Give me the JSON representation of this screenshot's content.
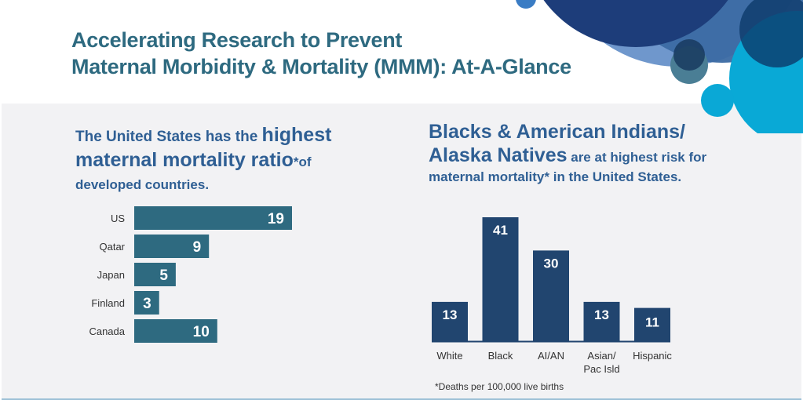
{
  "header": {
    "title_line1": "Accelerating Research to Prevent",
    "title_line2": "Maternal Morbidity & Mortality (MMM): At-A-Glance"
  },
  "colors": {
    "title": "#2e6a80",
    "heading": "#2f5f94",
    "bar_left": "#2e6a80",
    "bar_right": "#21456f",
    "panel_bg": "#f2f2f4",
    "bubble_navy": "#1a3c78",
    "bubble_blue": "#3e6aa8",
    "bubble_cyan": "#0aa8d6"
  },
  "left_section": {
    "heading_part1": "The United States has the ",
    "heading_part2": "highest",
    "heading_part3": "maternal mortality ratio",
    "heading_part4": "*of",
    "heading_part5": "developed countries."
  },
  "right_section": {
    "heading_part1": "Blacks & American Indians/",
    "heading_part2": "Alaska Natives",
    "heading_part3": " are at highest risk for",
    "heading_part4": "maternal mortality* in the United States.",
    "footnote": "*Deaths per 100,000 live births"
  },
  "chart_data": [
    {
      "type": "bar",
      "orientation": "horizontal",
      "title": "Maternal mortality ratio of developed countries",
      "categories": [
        "US",
        "Qatar",
        "Japan",
        "Finland",
        "Canada"
      ],
      "values": [
        19,
        9,
        5,
        3,
        10
      ],
      "xlabel": "",
      "ylabel": "",
      "xlim": [
        0,
        20
      ],
      "grid": false,
      "data_labels": true
    },
    {
      "type": "bar",
      "orientation": "vertical",
      "title": "Maternal mortality by race/ethnicity in the United States",
      "categories": [
        "White",
        "Black",
        "AI/AN",
        "Asian/\nPac Isld",
        "Hispanic"
      ],
      "category_lines": [
        [
          "White"
        ],
        [
          "Black"
        ],
        [
          "AI/AN"
        ],
        [
          "Asian/",
          "Pac Isld"
        ],
        [
          "Hispanic"
        ]
      ],
      "values": [
        13,
        41,
        30,
        13,
        11
      ],
      "xlabel": "",
      "ylabel": "",
      "ylim": [
        0,
        45
      ],
      "grid": false,
      "data_labels": true,
      "footnote": "*Deaths per 100,000 live births"
    }
  ]
}
